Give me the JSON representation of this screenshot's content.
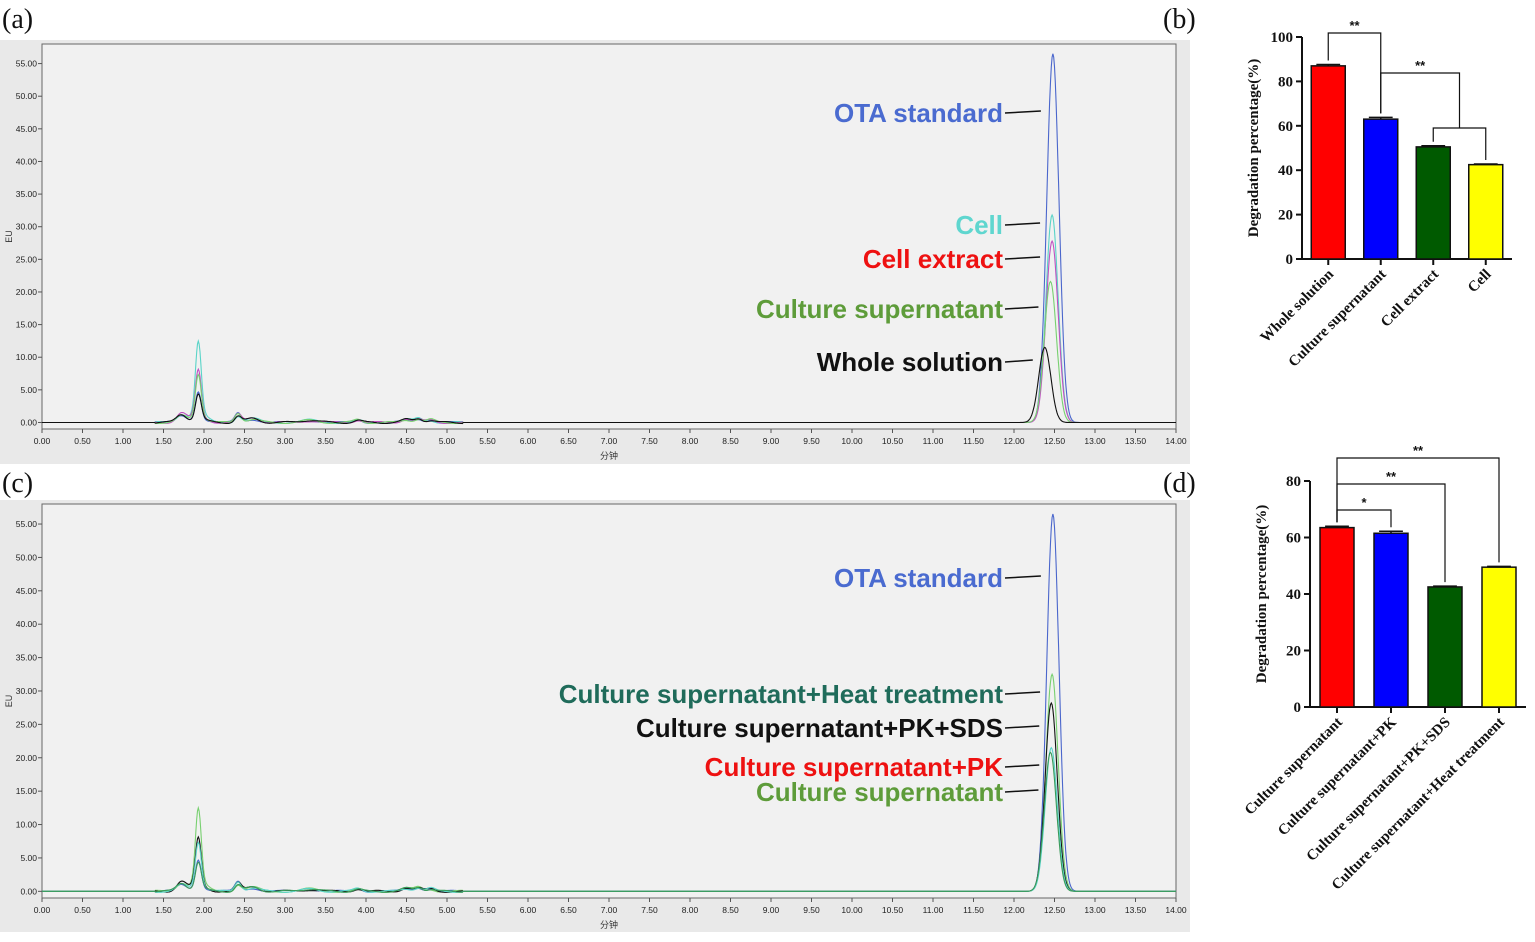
{
  "panels": {
    "a": "(a)",
    "b": "(b)",
    "c": "(c)",
    "d": "(d)"
  },
  "chart_data": [
    {
      "id": "a",
      "type": "line",
      "xlabel": "分钟",
      "ylabel": "EU",
      "xlim": [
        0,
        14
      ],
      "ylim": [
        -1,
        58
      ],
      "xticks": [
        "0.00",
        "0.50",
        "1.00",
        "1.50",
        "2.00",
        "2.50",
        "3.00",
        "3.50",
        "4.00",
        "4.50",
        "5.00",
        "5.50",
        "6.00",
        "6.50",
        "7.00",
        "7.50",
        "8.00",
        "8.50",
        "9.00",
        "9.50",
        "10.00",
        "10.50",
        "11.00",
        "11.50",
        "12.00",
        "12.50",
        "13.00",
        "13.50",
        "14.00"
      ],
      "yticks": [
        "0.00",
        "5.00",
        "10.00",
        "15.00",
        "20.00",
        "25.00",
        "30.00",
        "35.00",
        "40.00",
        "45.00",
        "50.00",
        "55.00"
      ],
      "series": [
        {
          "name": "OTA standard",
          "color": "#4a66cc",
          "peak_rt": 12.48,
          "peak_height": 56.5
        },
        {
          "name": "Cell",
          "color": "#5ad4c8",
          "peak_rt": 12.47,
          "peak_height": 31.8
        },
        {
          "name": "Cell extract",
          "color": "#c050c0",
          "peak_rt": 12.47,
          "peak_height": 27.8
        },
        {
          "name": "Culture supernatant",
          "color": "#78d070",
          "peak_rt": 12.45,
          "peak_height": 21.6
        },
        {
          "name": "Whole solution",
          "color": "#111111",
          "peak_rt": 12.38,
          "peak_height": 11.5
        }
      ],
      "annotations": [
        {
          "text": "OTA standard",
          "color": "#4a6bd0"
        },
        {
          "text": "Cell",
          "color": "#5fd6cf"
        },
        {
          "text": "Cell extract",
          "color": "#ee1111"
        },
        {
          "text": "Culture supernatant",
          "color": "#5e9c3a"
        },
        {
          "text": "Whole solution",
          "color": "#111111"
        }
      ]
    },
    {
      "id": "b",
      "type": "bar",
      "ylabel": "Degradation percentage(%)",
      "ylim": [
        0,
        100
      ],
      "yticks": [
        "0",
        "20",
        "40",
        "60",
        "80",
        "100"
      ],
      "categories": [
        "Whole solution",
        "Culture supernatant",
        "Cell extract",
        "Cell"
      ],
      "values": [
        87,
        63,
        50.5,
        42.5
      ],
      "errors": [
        0.6,
        0.8,
        0.5,
        0.3
      ],
      "colors": [
        "#ff0000",
        "#0000ff",
        "#005a00",
        "#ffff00"
      ],
      "significance": [
        {
          "from": 0,
          "to": 1,
          "label": "**"
        },
        {
          "from": 1,
          "to": 2.5,
          "label": "**"
        }
      ]
    },
    {
      "id": "c",
      "type": "line",
      "xlabel": "分钟",
      "ylabel": "EU",
      "xlim": [
        0,
        14
      ],
      "ylim": [
        -1,
        58
      ],
      "xticks": [
        "0.00",
        "0.50",
        "1.00",
        "1.50",
        "2.00",
        "2.50",
        "3.00",
        "3.50",
        "4.00",
        "4.50",
        "5.00",
        "5.50",
        "6.00",
        "6.50",
        "7.00",
        "7.50",
        "8.00",
        "8.50",
        "9.00",
        "9.50",
        "10.00",
        "10.50",
        "11.00",
        "11.50",
        "12.00",
        "12.50",
        "13.00",
        "13.50",
        "14.00"
      ],
      "yticks": [
        "0.00",
        "5.00",
        "10.00",
        "15.00",
        "20.00",
        "25.00",
        "30.00",
        "35.00",
        "40.00",
        "45.00",
        "50.00",
        "55.00"
      ],
      "series": [
        {
          "name": "OTA standard",
          "color": "#4a66cc",
          "peak_rt": 12.48,
          "peak_height": 56.5
        },
        {
          "name": "Culture supernatant+Heat treatment",
          "color": "#78d070",
          "peak_rt": 12.47,
          "peak_height": 32.5
        },
        {
          "name": "Culture supernatant+PK+SDS",
          "color": "#111111",
          "peak_rt": 12.46,
          "peak_height": 28.2
        },
        {
          "name": "Culture supernatant+PK",
          "color": "#5ad4c8",
          "peak_rt": 12.46,
          "peak_height": 21.5
        },
        {
          "name": "Culture supernatant",
          "color": "#3a9a5a",
          "peak_rt": 12.45,
          "peak_height": 20.8
        }
      ],
      "annotations": [
        {
          "text": "OTA standard",
          "color": "#4a6bd0"
        },
        {
          "text": "Culture supernatant+Heat treatment",
          "color": "#1f6b5a"
        },
        {
          "text": "Culture supernatant+PK+SDS",
          "color": "#111111"
        },
        {
          "text": "Culture supernatant+PK",
          "color": "#ee1111"
        },
        {
          "text": "Culture supernatant",
          "color": "#5e9c3a"
        }
      ]
    },
    {
      "id": "d",
      "type": "bar",
      "ylabel": "Degradation percentage(%)",
      "ylim": [
        0,
        80
      ],
      "yticks": [
        "0",
        "20",
        "40",
        "60",
        "80"
      ],
      "categories": [
        "Culture supernatant",
        "Culture supernatant+PK",
        "Culture supernatant+PK+SDS",
        "Culture supernatant+Heat treatment"
      ],
      "values": [
        63.5,
        61.5,
        42.5,
        49.5
      ],
      "errors": [
        0.5,
        0.7,
        0.3,
        0.3
      ],
      "colors": [
        "#ff0000",
        "#0000ff",
        "#005a00",
        "#ffff00"
      ],
      "significance": [
        {
          "from": 0,
          "to": 1,
          "label": "*"
        },
        {
          "from": 0,
          "to": 2,
          "label": "**"
        },
        {
          "from": 0,
          "to": 3,
          "label": "**"
        }
      ]
    }
  ]
}
